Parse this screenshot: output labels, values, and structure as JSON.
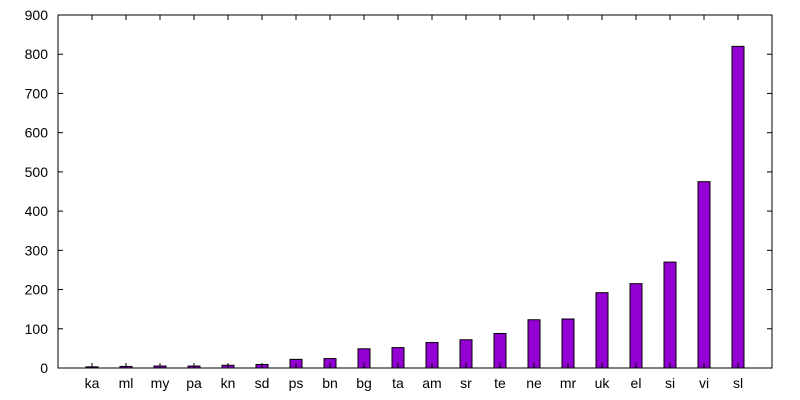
{
  "chart_data": {
    "type": "bar",
    "title": "",
    "xlabel": "",
    "ylabel": "",
    "categories": [
      "ka",
      "ml",
      "my",
      "pa",
      "kn",
      "sd",
      "ps",
      "bn",
      "bg",
      "ta",
      "am",
      "sr",
      "te",
      "ne",
      "mr",
      "uk",
      "el",
      "si",
      "vi",
      "sl"
    ],
    "values": [
      3,
      4,
      5,
      5,
      7,
      9,
      22,
      24,
      49,
      52,
      65,
      72,
      88,
      123,
      125,
      192,
      215,
      270,
      475,
      820
    ],
    "ylim": [
      0,
      900
    ],
    "yticks": [
      0,
      100,
      200,
      300,
      400,
      500,
      600,
      700,
      800,
      900
    ],
    "grid": false,
    "legend": "none",
    "bar_color": "#9400d3"
  }
}
